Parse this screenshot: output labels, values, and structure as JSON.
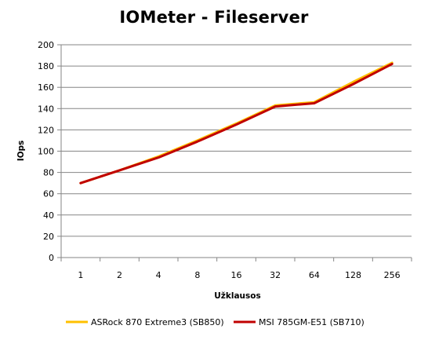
{
  "chart_data": {
    "type": "line",
    "title": "IOMeter - Fileserver",
    "xlabel": "Užklausos",
    "ylabel": "IOps",
    "categories": [
      "1",
      "2",
      "4",
      "8",
      "16",
      "32",
      "64",
      "128",
      "256"
    ],
    "ylim": [
      0,
      200
    ],
    "yticks": [
      0,
      20,
      40,
      60,
      80,
      100,
      120,
      140,
      160,
      180,
      200
    ],
    "grid": "horizontal",
    "legend_position": "bottom",
    "series": [
      {
        "name": "ASRock 870 Extreme3 (SB850)",
        "color": "#FFC000",
        "values": [
          70,
          82,
          95,
          110,
          126,
          143,
          146,
          165,
          183
        ]
      },
      {
        "name": "MSI 785GM-E51 (SB710)",
        "color": "#C00000",
        "values": [
          70,
          82,
          94,
          109,
          125,
          142,
          145,
          163,
          182
        ]
      }
    ]
  }
}
